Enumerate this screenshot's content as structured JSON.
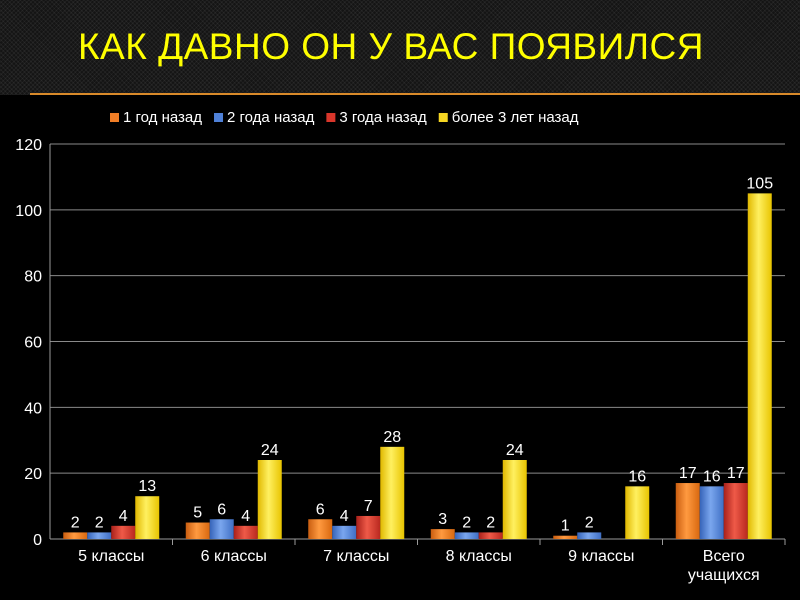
{
  "title": "КАК ДАВНО ОН У ВАС ПОЯВИЛСЯ",
  "chart_data": {
    "type": "bar",
    "categories": [
      [
        "5 классы"
      ],
      [
        "6 классы"
      ],
      [
        "7 классы"
      ],
      [
        "8 классы"
      ],
      [
        "9 классы"
      ],
      [
        "Всего",
        "учащихся"
      ]
    ],
    "series": [
      {
        "name": "1 год назад",
        "color": "#f07e26",
        "values": [
          2,
          5,
          6,
          3,
          1,
          17
        ]
      },
      {
        "name": "2 года назад",
        "color": "#4f81d8",
        "values": [
          2,
          6,
          4,
          2,
          2,
          16
        ]
      },
      {
        "name": "3 года назад",
        "color": "#d9362b",
        "values": [
          4,
          4,
          7,
          2,
          null,
          17
        ]
      },
      {
        "name": "более 3 лет назад",
        "color": "#f6d622",
        "values": [
          13,
          24,
          28,
          24,
          16,
          105
        ]
      }
    ],
    "ylim": [
      0,
      120
    ],
    "yticks": [
      0,
      20,
      40,
      60,
      80,
      100,
      120
    ],
    "grid": true,
    "legend": "top",
    "data_labels": true
  }
}
